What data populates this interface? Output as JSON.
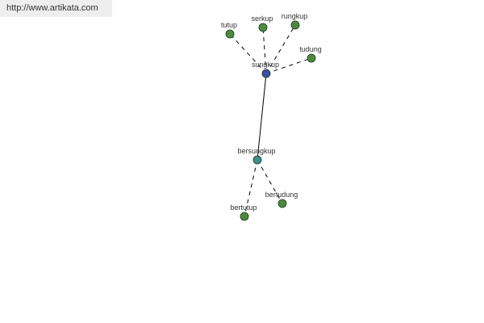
{
  "watermark": "http://www.artikata.com",
  "colors": {
    "leaf": "#4e8a3e",
    "root": "#3f4ea6",
    "derived": "#3b8f93",
    "edge": "#000000"
  },
  "nodes": [
    {
      "id": "sungkup",
      "label": "sungkup",
      "type": "root"
    },
    {
      "id": "tutup",
      "label": "tutup",
      "type": "leaf"
    },
    {
      "id": "serkup",
      "label": "serkup",
      "type": "leaf"
    },
    {
      "id": "rungkup",
      "label": "rungkup",
      "type": "leaf"
    },
    {
      "id": "tudung",
      "label": "tudung",
      "type": "leaf"
    },
    {
      "id": "bersungkup",
      "label": "bersungkup",
      "type": "derived"
    },
    {
      "id": "bertutup",
      "label": "bertutup",
      "type": "leaf"
    },
    {
      "id": "bertudung",
      "label": "bertudung",
      "type": "leaf"
    }
  ],
  "edges": [
    {
      "source": "sungkup",
      "target": "tutup",
      "style": "dashed"
    },
    {
      "source": "sungkup",
      "target": "serkup",
      "style": "dashed"
    },
    {
      "source": "sungkup",
      "target": "rungkup",
      "style": "dashed"
    },
    {
      "source": "sungkup",
      "target": "tudung",
      "style": "dashed"
    },
    {
      "source": "sungkup",
      "target": "bersungkup",
      "style": "solid"
    },
    {
      "source": "bersungkup",
      "target": "bertutup",
      "style": "dashed"
    },
    {
      "source": "bersungkup",
      "target": "bertudung",
      "style": "dashed"
    }
  ]
}
